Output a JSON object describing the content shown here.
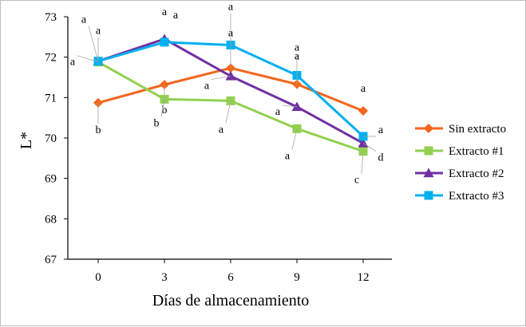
{
  "chart_data": {
    "type": "line",
    "xlabel": "Días de almacenamiento",
    "ylabel": "L*",
    "x": [
      0,
      3,
      6,
      9,
      12
    ],
    "x_tick_labels": [
      "0",
      "3",
      "6",
      "9",
      "12"
    ],
    "ylim": [
      67,
      73
    ],
    "y_ticks": [
      67,
      68,
      69,
      70,
      71,
      72,
      73
    ],
    "y_tick_labels": [
      "67",
      "68",
      "69",
      "70",
      "71",
      "72",
      "73"
    ],
    "grid": false,
    "legend_position": "right",
    "series": [
      {
        "name": "Sin extracto",
        "color": "#f4661b",
        "marker": "diamond",
        "values": [
          70.87,
          71.32,
          71.73,
          71.33,
          70.67
        ],
        "labels": [
          "b",
          "b",
          "a",
          "a",
          "a"
        ]
      },
      {
        "name": "Extracto #1",
        "color": "#92d050",
        "marker": "square",
        "values": [
          71.88,
          70.96,
          70.92,
          70.23,
          69.67
        ],
        "labels": [
          "a",
          "b",
          "a",
          "a",
          "c"
        ]
      },
      {
        "name": "Extracto #2",
        "color": "#7030a0",
        "marker": "triangle",
        "values": [
          71.9,
          72.45,
          71.53,
          70.77,
          69.87
        ],
        "labels": [
          "a",
          "a",
          "a",
          "a",
          "d"
        ]
      },
      {
        "name": "Extracto #3",
        "color": "#00b0f0",
        "marker": "square",
        "values": [
          71.9,
          72.37,
          72.3,
          71.55,
          70.04
        ],
        "labels": [
          "a",
          "a",
          "a",
          "a",
          "a"
        ]
      }
    ]
  }
}
